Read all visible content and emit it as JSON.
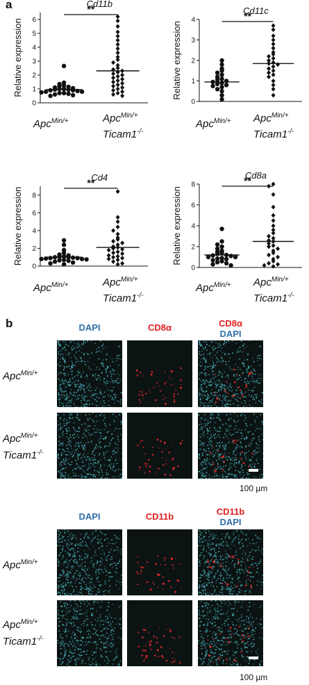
{
  "panel_a_label": "a",
  "panel_b_label": "b",
  "groups": {
    "ctrl_main": "Apc",
    "ctrl_sup": "Min/+",
    "ko_main": "Apc",
    "ko_sup": "Min/+",
    "ko_line2_main": "Ticam1",
    "ko_line2_sup": "-/-"
  },
  "chart_data": [
    {
      "type": "scatter",
      "title": "Cd11b",
      "ylabel": "Relative expression",
      "ylim": [
        0,
        6.5
      ],
      "yticks": [
        0,
        1,
        2,
        3,
        4,
        5,
        6
      ],
      "significance": "**",
      "categories": [
        "ApcMin/+",
        "ApcMin/+ Ticam1-/-"
      ],
      "series": [
        {
          "name": "ApcMin/+",
          "marker": "circle",
          "mean": 0.95,
          "values": [
            2.65,
            1.45,
            1.35,
            1.25,
            1.2,
            1.15,
            1.1,
            1.05,
            1.0,
            1.0,
            0.95,
            0.95,
            0.9,
            0.9,
            0.85,
            0.8,
            0.8,
            0.75,
            0.7,
            0.7,
            0.65,
            0.6,
            0.55,
            0.5
          ]
        },
        {
          "name": "ApcMin/+ Ticam1-/-",
          "marker": "diamond",
          "mean": 2.3,
          "values": [
            6.2,
            5.9,
            5.5,
            5.1,
            4.8,
            4.5,
            4.2,
            3.9,
            3.6,
            3.3,
            3.1,
            2.9,
            2.7,
            2.5,
            2.4,
            2.3,
            2.2,
            2.1,
            2.0,
            1.9,
            1.8,
            1.7,
            1.6,
            1.5,
            1.4,
            1.3,
            1.2,
            1.1,
            1.0,
            0.9,
            0.8,
            0.7,
            0.6,
            0.5
          ]
        }
      ]
    },
    {
      "type": "scatter",
      "title": "Cd11c",
      "ylabel": "Relative expression",
      "ylim": [
        0,
        4
      ],
      "yticks": [
        0,
        1,
        2,
        3,
        4
      ],
      "significance": "**",
      "categories": [
        "ApcMin/+",
        "ApcMin/+ Ticam1-/-"
      ],
      "series": [
        {
          "name": "ApcMin/+",
          "marker": "circle",
          "mean": 0.95,
          "values": [
            2.0,
            1.8,
            1.6,
            1.5,
            1.4,
            1.3,
            1.2,
            1.1,
            1.05,
            1.0,
            0.95,
            0.9,
            0.85,
            0.8,
            0.75,
            0.7,
            0.6,
            0.5,
            0.3,
            0.1
          ]
        },
        {
          "name": "ApcMin/+ Ticam1-/-",
          "marker": "diamond",
          "mean": 1.85,
          "values": [
            3.7,
            3.5,
            3.2,
            3.0,
            2.8,
            2.6,
            2.4,
            2.3,
            2.2,
            2.1,
            2.0,
            1.9,
            1.85,
            1.8,
            1.7,
            1.6,
            1.5,
            1.4,
            1.3,
            1.2,
            1.0,
            0.8,
            0.6,
            0.3
          ]
        }
      ]
    },
    {
      "type": "scatter",
      "title": "Cd4",
      "ylabel": "Relative expression",
      "ylim": [
        0,
        9
      ],
      "yticks": [
        0,
        2,
        4,
        6,
        8
      ],
      "significance": "**",
      "categories": [
        "ApcMin/+",
        "ApcMin/+ Ticam1-/-"
      ],
      "series": [
        {
          "name": "ApcMin/+",
          "marker": "circle",
          "mean": 1.0,
          "values": [
            2.9,
            2.4,
            1.8,
            1.5,
            1.3,
            1.2,
            1.1,
            1.05,
            1.0,
            1.0,
            0.95,
            0.9,
            0.9,
            0.85,
            0.8,
            0.8,
            0.75,
            0.7,
            0.65,
            0.6,
            0.5,
            0.4,
            0.3,
            0.2
          ]
        },
        {
          "name": "ApcMin/+ Ticam1-/-",
          "marker": "diamond",
          "mean": 2.1,
          "values": [
            8.4,
            5.5,
            5.0,
            4.4,
            4.0,
            3.6,
            3.2,
            3.0,
            2.8,
            2.6,
            2.4,
            2.2,
            2.1,
            2.0,
            1.9,
            1.8,
            1.6,
            1.5,
            1.4,
            1.2,
            1.1,
            1.0,
            0.9,
            0.8,
            0.7,
            0.5,
            0.3,
            0.2
          ]
        }
      ]
    },
    {
      "type": "scatter",
      "title": "Cd8a",
      "ylabel": "Relative expression",
      "ylim": [
        0,
        8
      ],
      "yticks": [
        0,
        2,
        4,
        6,
        8
      ],
      "significance": "**",
      "categories": [
        "ApcMin/+",
        "ApcMin/+ Ticam1-/-"
      ],
      "series": [
        {
          "name": "ApcMin/+",
          "marker": "circle",
          "mean": 1.2,
          "values": [
            3.7,
            2.5,
            2.2,
            2.0,
            1.8,
            1.6,
            1.5,
            1.4,
            1.3,
            1.2,
            1.15,
            1.1,
            1.0,
            1.0,
            0.9,
            0.85,
            0.8,
            0.7,
            0.6,
            0.5,
            0.4,
            0.3,
            0.2
          ]
        },
        {
          "name": "ApcMin/+ Ticam1-/-",
          "marker": "diamond",
          "mean": 2.5,
          "values": [
            8.0,
            7.8,
            7.0,
            5.8,
            5.0,
            4.5,
            4.0,
            3.6,
            3.3,
            3.0,
            2.8,
            2.6,
            2.5,
            2.3,
            2.1,
            2.0,
            1.8,
            1.6,
            1.4,
            1.2,
            1.0,
            0.8,
            0.6,
            0.4,
            0.3,
            0.2,
            0.1
          ]
        }
      ]
    }
  ],
  "panel_b": {
    "block1": {
      "col1": "DAPI",
      "col2": "CD8α",
      "col3_top": "CD8α",
      "col3_bottom": "DAPI",
      "scale": "100 µm"
    },
    "block2": {
      "col1": "DAPI",
      "col2": "CD11b",
      "col3_top": "CD11b",
      "col3_bottom": "DAPI",
      "scale": "100 µm"
    },
    "colors": {
      "dapi": "#2f6fa8",
      "marker": "#e02020",
      "tissue": "#4fc3cc",
      "stain": "#ff2a2a",
      "background": "#0c1313"
    }
  }
}
